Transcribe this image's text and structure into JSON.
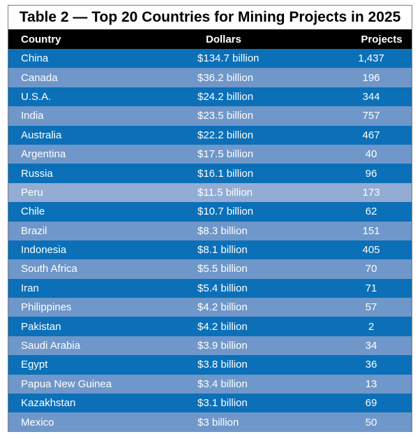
{
  "title": "Table 2 — Top 20 Countries for Mining Projects in 2025",
  "colors": {
    "row_dark": "#0b70b8",
    "row_light": "#6f97c9",
    "row_highlight": "#93acd4",
    "header_bg": "#000000"
  },
  "headers": {
    "country": "Country",
    "dollars": "Dollars",
    "projects": "Projects"
  },
  "rows": [
    {
      "country": "China",
      "dollars": "$134.7 billion",
      "projects": "1,437"
    },
    {
      "country": "Canada",
      "dollars": "$36.2 billion",
      "projects": "196"
    },
    {
      "country": "U.S.A.",
      "dollars": "$24.2 billion",
      "projects": "344"
    },
    {
      "country": "India",
      "dollars": "$23.5 billion",
      "projects": "757"
    },
    {
      "country": "Australia",
      "dollars": "$22.2 billion",
      "projects": "467"
    },
    {
      "country": "Argentina",
      "dollars": "$17.5 billion",
      "projects": "40"
    },
    {
      "country": "Russia",
      "dollars": "$16.1 billion",
      "projects": "96"
    },
    {
      "country": "Peru",
      "dollars": "$11.5 billion",
      "projects": "173"
    },
    {
      "country": "Chile",
      "dollars": "$10.7 billion",
      "projects": "62"
    },
    {
      "country": "Brazil",
      "dollars": "$8.3 billion",
      "projects": "151"
    },
    {
      "country": "Indonesia",
      "dollars": "$8.1 billion",
      "projects": "405"
    },
    {
      "country": "South Africa",
      "dollars": "$5.5 billion",
      "projects": "70"
    },
    {
      "country": "Iran",
      "dollars": "$5.4 billion",
      "projects": "71"
    },
    {
      "country": "Philippines",
      "dollars": "$4.2 billion",
      "projects": "57"
    },
    {
      "country": "Pakistan",
      "dollars": "$4.2 billion",
      "projects": "2"
    },
    {
      "country": "Saudi Arabia",
      "dollars": "$3.9 billion",
      "projects": "34"
    },
    {
      "country": "Egypt",
      "dollars": "$3.8 billion",
      "projects": "36"
    },
    {
      "country": "Papua New Guinea",
      "dollars": "$3.4 billion",
      "projects": "13"
    },
    {
      "country": "Kazakhstan",
      "dollars": "$3.1 billion",
      "projects": "69"
    },
    {
      "country": "Mexico",
      "dollars": "$3 billion",
      "projects": "50"
    }
  ]
}
